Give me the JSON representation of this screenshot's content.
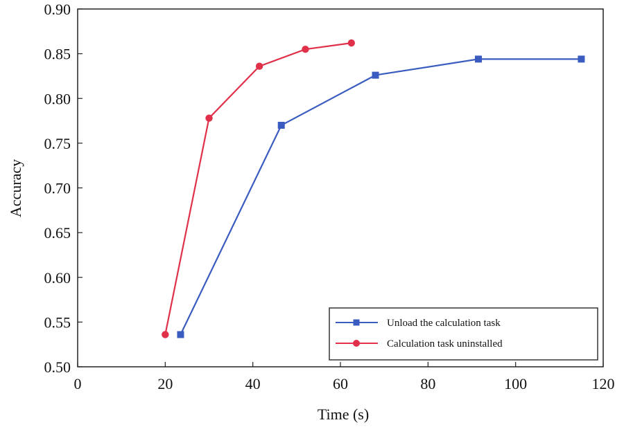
{
  "chart_data": {
    "type": "line",
    "title": "",
    "xlabel": "Time (s)",
    "ylabel": "Accuracy",
    "xlim": [
      0,
      120
    ],
    "ylim": [
      0.5,
      0.9
    ],
    "xticks": [
      0,
      20,
      40,
      60,
      80,
      100,
      120
    ],
    "xtick_labels": [
      "0",
      "20",
      "40",
      "60",
      "80",
      "100",
      "120"
    ],
    "yticks": [
      0.5,
      0.55,
      0.6,
      0.65,
      0.7,
      0.75,
      0.8,
      0.85,
      0.9
    ],
    "ytick_labels": [
      "0.50",
      "0.55",
      "0.60",
      "0.65",
      "0.70",
      "0.75",
      "0.80",
      "0.85",
      "0.90"
    ],
    "grid": false,
    "legend_position": "bottom-right",
    "series": [
      {
        "name": "Unload  the calculation task",
        "color": "#3a5bbf",
        "marker": "square",
        "x": [
          23.5,
          46.5,
          68,
          91.5,
          115
        ],
        "y": [
          0.536,
          0.77,
          0.826,
          0.844,
          0.844
        ]
      },
      {
        "name": "Calculation task uninstalled",
        "color": "#e0304a",
        "marker": "circle",
        "x": [
          20,
          30,
          41.5,
          52,
          62.5
        ],
        "y": [
          0.536,
          0.778,
          0.836,
          0.855,
          0.862
        ]
      }
    ]
  }
}
